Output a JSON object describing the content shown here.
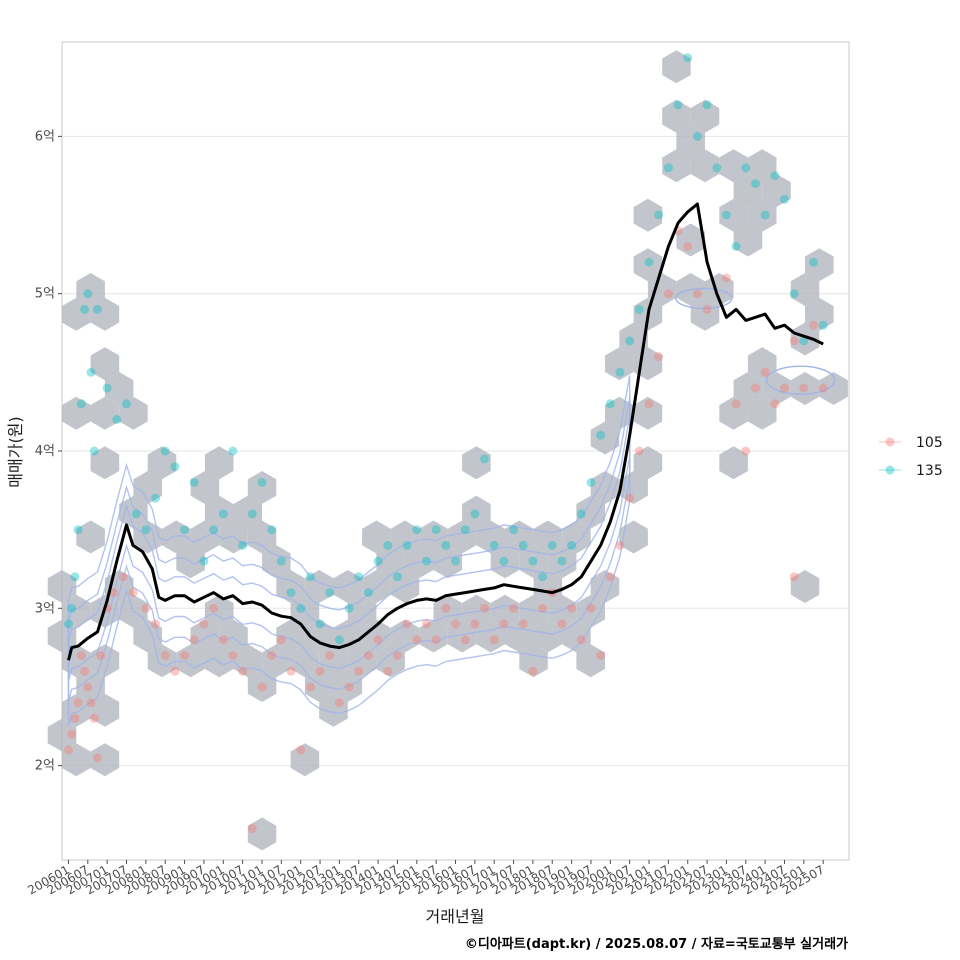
{
  "chart_data": {
    "type": "scatter",
    "xlabel": "거래년월",
    "ylabel": "매매가(원)",
    "caption": "©디아파트(dapt.kr) / 2025.08.07 / 자료=국토교통부 실거래가",
    "ylim": [
      1.4,
      6.6
    ],
    "xlim": [
      "2005-11",
      "2026-03"
    ],
    "y_ticks": [
      {
        "value": 2,
        "label": "2억"
      },
      {
        "value": 3,
        "label": "3억"
      },
      {
        "value": 4,
        "label": "4억"
      },
      {
        "value": 5,
        "label": "5억"
      },
      {
        "value": 6,
        "label": "6억"
      }
    ],
    "x_ticks": [
      "200601",
      "200607",
      "200701",
      "200707",
      "200801",
      "200807",
      "200901",
      "200907",
      "201001",
      "201007",
      "201101",
      "201107",
      "201201",
      "201207",
      "201301",
      "201307",
      "201401",
      "201407",
      "201501",
      "201507",
      "201601",
      "201607",
      "201701",
      "201707",
      "201801",
      "201807",
      "201901",
      "201907",
      "202001",
      "202007",
      "202101",
      "202107",
      "202201",
      "202207",
      "202301",
      "202307",
      "202401",
      "202407",
      "202501",
      "202507"
    ],
    "grid": true,
    "legend_position": "right",
    "legend": [
      {
        "name": "105",
        "color": "#F8766D"
      },
      {
        "name": "135",
        "color": "#00BFC4"
      }
    ],
    "colors": {
      "hex": "#b3b8bf",
      "contour": "#9fb4ea",
      "trend": "#000000"
    },
    "trend": [
      [
        "2006-01",
        2.67
      ],
      [
        "2006-02",
        2.75
      ],
      [
        "2006-04",
        2.76
      ],
      [
        "2006-07",
        2.81
      ],
      [
        "2006-10",
        2.85
      ],
      [
        "2007-01",
        3.05
      ],
      [
        "2007-04",
        3.3
      ],
      [
        "2007-07",
        3.53
      ],
      [
        "2007-09",
        3.4
      ],
      [
        "2007-12",
        3.36
      ],
      [
        "2008-03",
        3.25
      ],
      [
        "2008-05",
        3.07
      ],
      [
        "2008-07",
        3.05
      ],
      [
        "2008-10",
        3.08
      ],
      [
        "2009-01",
        3.08
      ],
      [
        "2009-04",
        3.04
      ],
      [
        "2009-07",
        3.07
      ],
      [
        "2009-10",
        3.1
      ],
      [
        "2010-01",
        3.06
      ],
      [
        "2010-04",
        3.08
      ],
      [
        "2010-07",
        3.03
      ],
      [
        "2010-10",
        3.04
      ],
      [
        "2011-01",
        3.02
      ],
      [
        "2011-04",
        2.97
      ],
      [
        "2011-07",
        2.95
      ],
      [
        "2011-10",
        2.94
      ],
      [
        "2012-01",
        2.9
      ],
      [
        "2012-04",
        2.82
      ],
      [
        "2012-07",
        2.78
      ],
      [
        "2012-10",
        2.76
      ],
      [
        "2013-01",
        2.75
      ],
      [
        "2013-04",
        2.77
      ],
      [
        "2013-07",
        2.8
      ],
      [
        "2013-10",
        2.85
      ],
      [
        "2014-01",
        2.9
      ],
      [
        "2014-04",
        2.96
      ],
      [
        "2014-07",
        3.0
      ],
      [
        "2014-10",
        3.03
      ],
      [
        "2015-01",
        3.05
      ],
      [
        "2015-04",
        3.06
      ],
      [
        "2015-07",
        3.05
      ],
      [
        "2015-10",
        3.08
      ],
      [
        "2016-01",
        3.09
      ],
      [
        "2016-04",
        3.1
      ],
      [
        "2016-07",
        3.11
      ],
      [
        "2016-10",
        3.12
      ],
      [
        "2017-01",
        3.13
      ],
      [
        "2017-04",
        3.15
      ],
      [
        "2017-07",
        3.14
      ],
      [
        "2017-10",
        3.13
      ],
      [
        "2018-01",
        3.12
      ],
      [
        "2018-04",
        3.11
      ],
      [
        "2018-07",
        3.1
      ],
      [
        "2018-10",
        3.12
      ],
      [
        "2019-01",
        3.15
      ],
      [
        "2019-04",
        3.2
      ],
      [
        "2019-07",
        3.3
      ],
      [
        "2019-10",
        3.4
      ],
      [
        "2020-01",
        3.55
      ],
      [
        "2020-04",
        3.75
      ],
      [
        "2020-07",
        4.1
      ],
      [
        "2020-10",
        4.5
      ],
      [
        "2021-01",
        4.9
      ],
      [
        "2021-04",
        5.1
      ],
      [
        "2021-07",
        5.3
      ],
      [
        "2021-10",
        5.45
      ],
      [
        "2022-01",
        5.52
      ],
      [
        "2022-04",
        5.57
      ],
      [
        "2022-07",
        5.2
      ],
      [
        "2022-10",
        5.0
      ],
      [
        "2023-01",
        4.85
      ],
      [
        "2023-04",
        4.9
      ],
      [
        "2023-07",
        4.83
      ],
      [
        "2023-10",
        4.85
      ],
      [
        "2024-01",
        4.87
      ],
      [
        "2024-04",
        4.78
      ],
      [
        "2024-07",
        4.8
      ],
      [
        "2024-10",
        4.75
      ],
      [
        "2025-01",
        4.73
      ],
      [
        "2025-04",
        4.71
      ],
      [
        "2025-07",
        4.68
      ]
    ],
    "series": [
      {
        "name": "105",
        "points": [
          [
            "2006-01",
            2.1
          ],
          [
            "2006-02",
            2.2
          ],
          [
            "2006-03",
            2.3
          ],
          [
            "2006-04",
            2.4
          ],
          [
            "2006-05",
            2.7
          ],
          [
            "2006-06",
            2.6
          ],
          [
            "2006-07",
            2.5
          ],
          [
            "2006-08",
            2.4
          ],
          [
            "2006-09",
            2.3
          ],
          [
            "2006-10",
            2.05
          ],
          [
            "2006-11",
            2.7
          ],
          [
            "2007-01",
            3.0
          ],
          [
            "2007-03",
            3.1
          ],
          [
            "2007-06",
            3.2
          ],
          [
            "2007-09",
            3.1
          ],
          [
            "2008-01",
            3.0
          ],
          [
            "2008-04",
            2.9
          ],
          [
            "2008-07",
            2.7
          ],
          [
            "2008-10",
            2.6
          ],
          [
            "2009-01",
            2.7
          ],
          [
            "2009-04",
            2.8
          ],
          [
            "2009-07",
            2.9
          ],
          [
            "2009-10",
            3.0
          ],
          [
            "2010-01",
            2.8
          ],
          [
            "2010-04",
            2.7
          ],
          [
            "2010-07",
            2.6
          ],
          [
            "2010-10",
            1.6
          ],
          [
            "2011-01",
            2.5
          ],
          [
            "2011-04",
            2.7
          ],
          [
            "2011-07",
            2.8
          ],
          [
            "2011-10",
            2.6
          ],
          [
            "2012-01",
            2.1
          ],
          [
            "2012-04",
            2.5
          ],
          [
            "2012-07",
            2.6
          ],
          [
            "2012-10",
            2.7
          ],
          [
            "2013-01",
            2.4
          ],
          [
            "2013-04",
            2.5
          ],
          [
            "2013-07",
            2.6
          ],
          [
            "2013-10",
            2.7
          ],
          [
            "2014-01",
            2.8
          ],
          [
            "2014-04",
            2.6
          ],
          [
            "2014-07",
            2.7
          ],
          [
            "2014-10",
            2.9
          ],
          [
            "2015-01",
            2.8
          ],
          [
            "2015-04",
            2.9
          ],
          [
            "2015-07",
            2.8
          ],
          [
            "2015-10",
            3.0
          ],
          [
            "2016-01",
            2.9
          ],
          [
            "2016-04",
            2.8
          ],
          [
            "2016-07",
            2.9
          ],
          [
            "2016-10",
            3.0
          ],
          [
            "2017-01",
            2.8
          ],
          [
            "2017-04",
            2.9
          ],
          [
            "2017-07",
            3.0
          ],
          [
            "2017-10",
            2.9
          ],
          [
            "2018-01",
            2.6
          ],
          [
            "2018-04",
            3.0
          ],
          [
            "2018-07",
            3.1
          ],
          [
            "2018-10",
            2.9
          ],
          [
            "2019-01",
            3.0
          ],
          [
            "2019-04",
            2.8
          ],
          [
            "2019-07",
            3.0
          ],
          [
            "2019-10",
            2.7
          ],
          [
            "2020-01",
            3.2
          ],
          [
            "2020-04",
            3.4
          ],
          [
            "2020-07",
            3.7
          ],
          [
            "2020-10",
            4.0
          ],
          [
            "2021-01",
            4.3
          ],
          [
            "2021-04",
            4.6
          ],
          [
            "2021-07",
            5.0
          ],
          [
            "2021-10",
            5.4
          ],
          [
            "2022-01",
            5.3
          ],
          [
            "2022-04",
            5.0
          ],
          [
            "2022-07",
            4.9
          ],
          [
            "2023-01",
            5.1
          ],
          [
            "2023-04",
            4.3
          ],
          [
            "2023-07",
            4.0
          ],
          [
            "2023-10",
            4.4
          ],
          [
            "2024-01",
            4.5
          ],
          [
            "2024-04",
            4.3
          ],
          [
            "2024-07",
            4.4
          ],
          [
            "2024-10",
            4.7
          ],
          [
            "2025-01",
            4.4
          ],
          [
            "2025-04",
            4.8
          ],
          [
            "2025-07",
            4.4
          ],
          [
            "2024-10",
            3.2
          ]
        ]
      },
      {
        "name": "135",
        "points": [
          [
            "2006-01",
            2.9
          ],
          [
            "2006-02",
            3.0
          ],
          [
            "2006-03",
            3.2
          ],
          [
            "2006-04",
            3.5
          ],
          [
            "2006-05",
            4.3
          ],
          [
            "2006-06",
            4.9
          ],
          [
            "2006-07",
            5.0
          ],
          [
            "2006-08",
            4.5
          ],
          [
            "2006-09",
            4.0
          ],
          [
            "2006-10",
            4.9
          ],
          [
            "2007-01",
            4.4
          ],
          [
            "2007-04",
            4.2
          ],
          [
            "2007-07",
            4.3
          ],
          [
            "2007-10",
            3.6
          ],
          [
            "2008-01",
            3.5
          ],
          [
            "2008-04",
            3.7
          ],
          [
            "2008-07",
            4.0
          ],
          [
            "2008-10",
            3.9
          ],
          [
            "2009-01",
            3.5
          ],
          [
            "2009-04",
            3.8
          ],
          [
            "2009-07",
            3.3
          ],
          [
            "2009-10",
            3.5
          ],
          [
            "2010-01",
            3.6
          ],
          [
            "2010-04",
            4.0
          ],
          [
            "2010-07",
            3.4
          ],
          [
            "2010-10",
            3.6
          ],
          [
            "2011-01",
            3.8
          ],
          [
            "2011-04",
            3.5
          ],
          [
            "2011-07",
            3.3
          ],
          [
            "2011-10",
            3.1
          ],
          [
            "2012-01",
            3.0
          ],
          [
            "2012-04",
            3.2
          ],
          [
            "2012-07",
            2.9
          ],
          [
            "2012-10",
            3.1
          ],
          [
            "2013-01",
            2.8
          ],
          [
            "2013-04",
            3.0
          ],
          [
            "2013-07",
            3.2
          ],
          [
            "2013-10",
            3.1
          ],
          [
            "2014-01",
            3.3
          ],
          [
            "2014-04",
            3.4
          ],
          [
            "2014-07",
            3.2
          ],
          [
            "2014-10",
            3.4
          ],
          [
            "2015-01",
            3.5
          ],
          [
            "2015-04",
            3.3
          ],
          [
            "2015-07",
            3.5
          ],
          [
            "2015-10",
            3.4
          ],
          [
            "2016-01",
            3.3
          ],
          [
            "2016-04",
            3.5
          ],
          [
            "2016-07",
            3.6
          ],
          [
            "2016-10",
            3.95
          ],
          [
            "2017-01",
            3.4
          ],
          [
            "2017-04",
            3.3
          ],
          [
            "2017-07",
            3.5
          ],
          [
            "2017-10",
            3.4
          ],
          [
            "2018-01",
            3.3
          ],
          [
            "2018-04",
            3.2
          ],
          [
            "2018-07",
            3.4
          ],
          [
            "2018-10",
            3.3
          ],
          [
            "2019-01",
            3.4
          ],
          [
            "2019-04",
            3.6
          ],
          [
            "2019-07",
            3.8
          ],
          [
            "2019-10",
            4.1
          ],
          [
            "2020-01",
            4.3
          ],
          [
            "2020-04",
            4.5
          ],
          [
            "2020-07",
            4.7
          ],
          [
            "2020-10",
            4.9
          ],
          [
            "2021-01",
            5.2
          ],
          [
            "2021-04",
            5.5
          ],
          [
            "2021-07",
            5.8
          ],
          [
            "2021-10",
            6.2
          ],
          [
            "2022-01",
            6.5
          ],
          [
            "2022-04",
            6.0
          ],
          [
            "2022-07",
            6.2
          ],
          [
            "2022-10",
            5.8
          ],
          [
            "2023-01",
            5.5
          ],
          [
            "2023-04",
            5.3
          ],
          [
            "2023-07",
            5.8
          ],
          [
            "2023-10",
            5.7
          ],
          [
            "2024-01",
            5.5
          ],
          [
            "2024-04",
            5.75
          ],
          [
            "2024-07",
            5.6
          ],
          [
            "2024-10",
            5.0
          ],
          [
            "2025-01",
            4.7
          ],
          [
            "2025-04",
            5.2
          ],
          [
            "2025-07",
            4.8
          ]
        ]
      }
    ]
  }
}
